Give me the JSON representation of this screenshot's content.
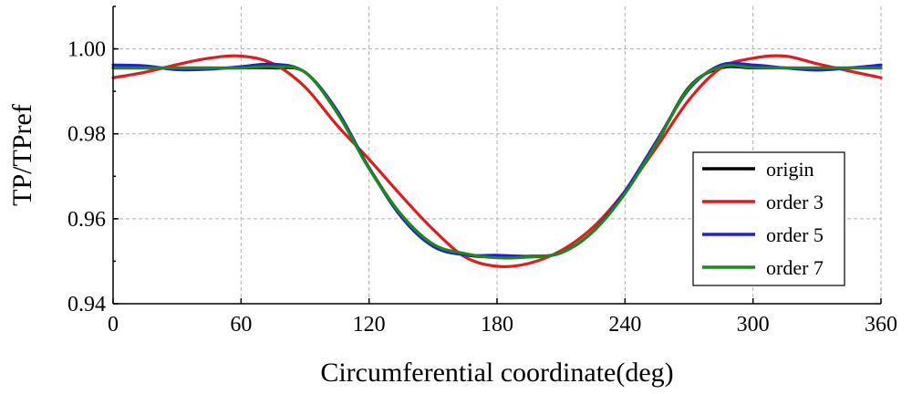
{
  "chart_data": {
    "type": "line",
    "xlabel": "Circumferential coordinate(deg)",
    "ylabel": "TP/TPref",
    "xlim": [
      0,
      360
    ],
    "ylim": [
      0.94,
      1.01
    ],
    "x_ticks": [
      0,
      60,
      120,
      180,
      240,
      300,
      360
    ],
    "y_ticks": [
      0.94,
      0.96,
      0.98,
      1.0
    ],
    "x_tick_labels": [
      "0",
      "60",
      "120",
      "180",
      "240",
      "300",
      "360"
    ],
    "y_tick_labels": [
      "0.94",
      "0.96",
      "0.98",
      "1.00"
    ],
    "grid": true,
    "legend_position": "right",
    "x": [
      0,
      15,
      30,
      45,
      60,
      75,
      90,
      105,
      120,
      135,
      150,
      165,
      180,
      195,
      210,
      225,
      240,
      255,
      270,
      285,
      300,
      315,
      330,
      345,
      360
    ],
    "series": [
      {
        "name": "origin",
        "color": "#000000",
        "values": [
          0.9955,
          0.9955,
          0.9955,
          0.9955,
          0.9955,
          0.9955,
          0.9945,
          0.985,
          0.972,
          0.961,
          0.954,
          0.9515,
          0.951,
          0.951,
          0.952,
          0.957,
          0.966,
          0.978,
          0.991,
          0.9955,
          0.9955,
          0.9955,
          0.9955,
          0.9955,
          0.9955
        ]
      },
      {
        "name": "order 3",
        "color": "#e41a1c",
        "values": [
          0.9932,
          0.9945,
          0.9963,
          0.9978,
          0.9983,
          0.9965,
          0.991,
          0.982,
          0.974,
          0.9655,
          0.9575,
          0.951,
          0.9488,
          0.9495,
          0.9525,
          0.958,
          0.9665,
          0.977,
          0.988,
          0.9955,
          0.9978,
          0.9983,
          0.9965,
          0.9948,
          0.9932
        ]
      },
      {
        "name": "order 5",
        "color": "#1f1fe0",
        "values": [
          0.9962,
          0.996,
          0.9951,
          0.9952,
          0.9958,
          0.9964,
          0.9945,
          0.9855,
          0.972,
          0.9605,
          0.9535,
          0.9515,
          0.9514,
          0.9512,
          0.952,
          0.957,
          0.9665,
          0.9785,
          0.9905,
          0.9962,
          0.9962,
          0.9955,
          0.995,
          0.9955,
          0.9962
        ]
      },
      {
        "name": "order 7",
        "color": "#1a8a1a",
        "values": [
          0.9955,
          0.9955,
          0.9955,
          0.9955,
          0.9955,
          0.9958,
          0.9945,
          0.985,
          0.9718,
          0.961,
          0.954,
          0.9518,
          0.9508,
          0.951,
          0.952,
          0.957,
          0.966,
          0.978,
          0.9908,
          0.9958,
          0.9956,
          0.9955,
          0.9955,
          0.9955,
          0.9955
        ]
      }
    ]
  }
}
